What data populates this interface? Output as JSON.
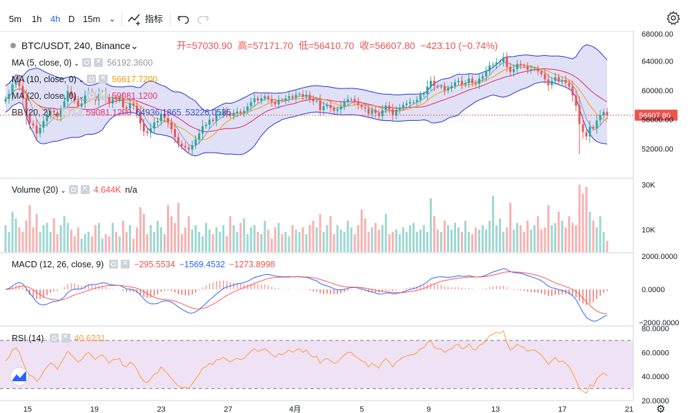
{
  "toolbar": {
    "intervals": [
      "5m",
      "1h",
      "4h",
      "D",
      "15m"
    ],
    "active_interval": "4h",
    "indicators_label": "指标"
  },
  "main": {
    "symbol": "BTC/USDT, 240, Binance",
    "open_label": "开",
    "open": "57030.90",
    "high_label": "高",
    "high": "57171.70",
    "low_label": "低",
    "low": "56410.70",
    "close_label": "收",
    "close": "56607.80",
    "change": "−423.10 (−0.74%)",
    "price_tag": "56607.80",
    "price_axis": [
      "64000.00",
      "60000.00",
      "56000.00",
      "52000.00"
    ],
    "price_axis_top_cut": "68000.00",
    "indicators": [
      {
        "name": "MA (5, close, 0)",
        "value": "56192.3600",
        "color": "#9598a1"
      },
      {
        "name": "MA (10, close, 0)",
        "value": "56617.7200",
        "color": "#ff9800"
      },
      {
        "name": "MA (20, close, 0)",
        "value": "59081.1200",
        "color": "#e91e63"
      },
      {
        "name": "BB (20, 2)",
        "value": "59081.1200",
        "value2": "64936.1865",
        "value3": "53226.0535",
        "color": "#e91e63",
        "color2": "#1e3fd6"
      }
    ]
  },
  "volume": {
    "name": "Volume (20)",
    "value": "4.644K",
    "na": "n/a",
    "axis": [
      "30K",
      "10K"
    ]
  },
  "macd": {
    "name": "MACD (12, 26, close, 9)",
    "v1": "−295.5534",
    "v2": "−1569.4532",
    "v3": "−1273.8998",
    "axis": [
      "2000.0000",
      "0.0000",
      "−2000.0000"
    ]
  },
  "rsi": {
    "name": "RSI (14)",
    "value": "40.6231",
    "axis": [
      "80.0000",
      "60.0000",
      "40.0000",
      "20.0000"
    ]
  },
  "time_axis": [
    "15",
    "19",
    "23",
    "27",
    "4月",
    "5",
    "9",
    "13",
    "17",
    "21"
  ],
  "colors": {
    "up": "#26a69a",
    "down": "#ef5350",
    "ma5": "#9598a1",
    "ma10": "#ff9800",
    "ma20": "#e91e63",
    "bb_band": "#2130d0",
    "bb_fill": "#c6c9f0",
    "macd_line": "#2962ff",
    "signal_line": "#ff5252",
    "rsi_line": "#ff9a3c",
    "rsi_fill": "#e8d5ef"
  },
  "chart_data": {
    "type": "candlestick",
    "price_range": [
      48000,
      68000
    ],
    "volume_range": [
      0,
      32000
    ],
    "macd_range": [
      -2200,
      2200
    ],
    "rsi_range": [
      20,
      82
    ],
    "rsi_bands": [
      70,
      30
    ],
    "closes": [
      58800,
      59500,
      60800,
      61300,
      60600,
      58900,
      56500,
      55500,
      55200,
      54100,
      54900,
      55800,
      56600,
      57200,
      57000,
      56400,
      57300,
      58500,
      59900,
      59200,
      58600,
      57800,
      58200,
      59300,
      59800,
      59200,
      58600,
      59500,
      59700,
      59000,
      58200,
      58800,
      58700,
      58900,
      57700,
      57500,
      58200,
      57900,
      56900,
      55500,
      54400,
      54200,
      54800,
      55600,
      55800,
      56800,
      56200,
      55600,
      54700,
      53600,
      52700,
      52400,
      52200,
      51900,
      52500,
      53300,
      54100,
      55100,
      55300,
      56000,
      55800,
      56700,
      56700,
      57200,
      56800,
      56500,
      56900,
      57100,
      56900,
      57200,
      57800,
      58400,
      58900,
      58600,
      58900,
      59200,
      58800,
      58400,
      58100,
      58700,
      58600,
      58900,
      59200,
      59000,
      59400,
      59500,
      59100,
      59400,
      58800,
      58500,
      58600,
      57300,
      57800,
      58000,
      57600,
      57200,
      57400,
      57800,
      58400,
      58800,
      58800,
      58400,
      58000,
      57700,
      57500,
      56800,
      57300,
      56900,
      56500,
      57300,
      57900,
      57400,
      56600,
      57300,
      57600,
      58000,
      58200,
      58400,
      58400,
      58700,
      59400,
      59500,
      60500,
      61300,
      60600,
      60500,
      60500,
      60000,
      60300,
      60600,
      61100,
      61300,
      60800,
      61000,
      61600,
      61000,
      60900,
      61600,
      61900,
      62600,
      63400,
      63500,
      63800,
      63900,
      64500,
      63200,
      62500,
      62900,
      63600,
      63400,
      63300,
      62800,
      62900,
      62900,
      62600,
      62200,
      61500,
      60700,
      61300,
      61800,
      61200,
      61400,
      61000,
      60500,
      59300,
      57900,
      55400,
      54300,
      53700,
      55000,
      54800,
      55900,
      56600,
      57030,
      56607.8
    ],
    "volumes": [
      12000,
      9000,
      18000,
      15000,
      11000,
      9000,
      14000,
      21000,
      11000,
      17000,
      9000,
      12000,
      13000,
      9000,
      15000,
      8000,
      12000,
      16000,
      13000,
      10000,
      7000,
      11000,
      6000,
      8000,
      9000,
      7000,
      12000,
      13000,
      6000,
      8000,
      7000,
      13000,
      9000,
      7000,
      14000,
      9000,
      12000,
      6000,
      11000,
      20000,
      17000,
      8000,
      12000,
      9000,
      14000,
      11000,
      8000,
      21000,
      16000,
      13000,
      22000,
      8000,
      11000,
      16000,
      10000,
      12000,
      9000,
      7000,
      13000,
      10000,
      8000,
      11000,
      9000,
      12000,
      7000,
      16000,
      12000,
      9000,
      13000,
      15000,
      8000,
      11000,
      12000,
      9000,
      8000,
      14000,
      10000,
      6000,
      11000,
      13000,
      8000,
      9000,
      7000,
      12000,
      10000,
      9000,
      11000,
      8000,
      12000,
      14000,
      11000,
      17000,
      9000,
      12000,
      16000,
      8000,
      12000,
      10000,
      9000,
      14000,
      11000,
      8000,
      12000,
      19000,
      15000,
      9000,
      11000,
      13000,
      10000,
      12000,
      17000,
      8000,
      9000,
      10000,
      8000,
      11000,
      9000,
      12000,
      13000,
      9000,
      10000,
      12000,
      9000,
      24000,
      16000,
      10000,
      9000,
      14000,
      12000,
      10000,
      13000,
      11000,
      9000,
      14000,
      9000,
      8000,
      11000,
      10000,
      12000,
      10000,
      14000,
      25000,
      12000,
      15000,
      9000,
      11000,
      22000,
      10000,
      13000,
      12000,
      9000,
      14000,
      10000,
      12000,
      16000,
      10000,
      11000,
      21000,
      12000,
      13000,
      18000,
      14000,
      11000,
      16000,
      13000,
      12000,
      30000,
      26000,
      29000,
      18000,
      14000,
      11000,
      16000,
      9000,
      5000
    ],
    "rsi": [
      53,
      56,
      62,
      64,
      60,
      52,
      45,
      41,
      40,
      36,
      39,
      44,
      48,
      51,
      50,
      46,
      51,
      56,
      61,
      58,
      55,
      52,
      54,
      58,
      60,
      57,
      54,
      57,
      58,
      55,
      51,
      54,
      54,
      55,
      49,
      48,
      52,
      50,
      46,
      40,
      36,
      35,
      38,
      42,
      43,
      48,
      45,
      42,
      38,
      35,
      32,
      31,
      31,
      30,
      34,
      38,
      42,
      47,
      48,
      51,
      50,
      54,
      54,
      56,
      54,
      52,
      54,
      55,
      54,
      55,
      58,
      61,
      63,
      61,
      62,
      63,
      61,
      58,
      56,
      59,
      58,
      60,
      62,
      60,
      62,
      63,
      60,
      62,
      58,
      56,
      57,
      51,
      54,
      55,
      53,
      51,
      52,
      55,
      58,
      60,
      60,
      57,
      55,
      53,
      52,
      48,
      51,
      49,
      47,
      52,
      55,
      52,
      48,
      52,
      54,
      56,
      57,
      58,
      58,
      60,
      63,
      64,
      68,
      70,
      64,
      63,
      63,
      60,
      62,
      63,
      66,
      67,
      63,
      64,
      67,
      63,
      62,
      66,
      67,
      70,
      74,
      75,
      77,
      76,
      78,
      68,
      62,
      64,
      67,
      65,
      64,
      61,
      62,
      62,
      60,
      58,
      54,
      50,
      53,
      56,
      52,
      53,
      51,
      48,
      43,
      37,
      30,
      28,
      26,
      33,
      32,
      38,
      41,
      43,
      40.6
    ]
  }
}
